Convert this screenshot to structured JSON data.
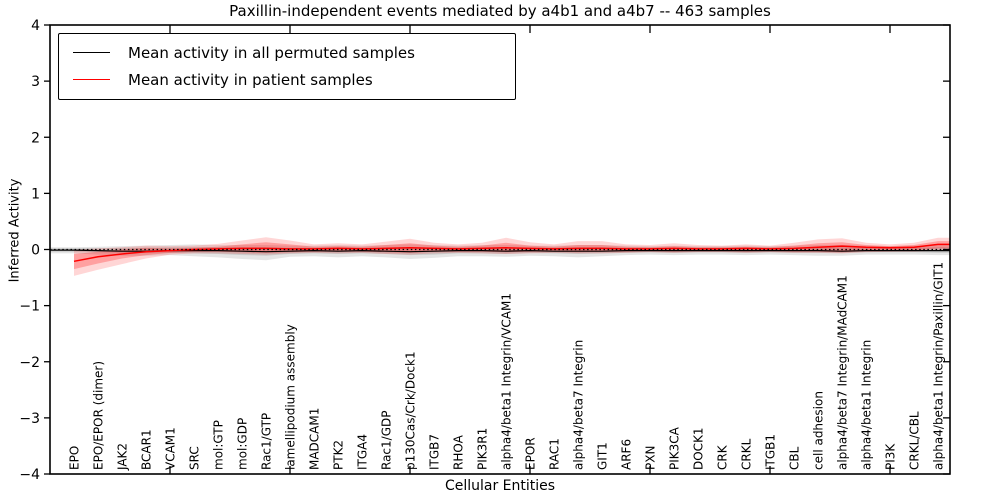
{
  "title": "Paxillin-independent events mediated by a4b1 and a4b7 -- 463 samples",
  "axes": {
    "y_label": "Inferred Activity",
    "x_label": "Cellular Entities",
    "y_tick_labels": [
      "4",
      "3",
      "2",
      "1",
      "0",
      "−1",
      "−2",
      "−3",
      "−4"
    ],
    "y_tick_values": [
      4,
      3,
      2,
      1,
      0,
      -1,
      -2,
      -3,
      -4
    ]
  },
  "legend": {
    "items": [
      {
        "label": "Mean activity in all permuted samples",
        "color": "#000000"
      },
      {
        "label": "Mean activity in patient samples",
        "color": "#ff0000"
      }
    ]
  },
  "colors": {
    "patient_line": "#ff0000",
    "permuted_line": "#000000",
    "patient_band": "rgba(255,0,0,0.16)",
    "patient_band_inner": "rgba(255,0,0,0.25)",
    "permuted_band": "rgba(0,0,0,0.10)",
    "permuted_band_inner": "rgba(0,0,0,0.11)",
    "zero_line": "#000000"
  },
  "chart_data": {
    "type": "line",
    "title": "Paxillin-independent events mediated by a4b1 and a4b7 -- 463 samples",
    "xlabel": "Cellular Entities",
    "ylabel": "Inferred Activity",
    "ylim": [
      -4,
      4
    ],
    "grid": false,
    "legend_position": "upper left",
    "x_tick_indices": [
      4,
      9,
      14,
      19,
      24,
      29,
      34
    ],
    "categories": [
      "EPO",
      "EPO/EPOR (dimer)",
      "JAK2",
      "BCAR1",
      "VCAM1",
      "SRC",
      "mol:GTP",
      "mol:GDP",
      "Rac1/GTP",
      "lamellipodium assembly",
      "MADCAM1",
      "PTK2",
      "ITGA4",
      "Rac1/GDP",
      "p130Cas/Crk/Dock1",
      "ITGB7",
      "RHOA",
      "PIK3R1",
      "alpha4/beta1 Integrin/VCAM1",
      "EPOR",
      "RAC1",
      "alpha4/beta7 Integrin",
      "GIT1",
      "ARF6",
      "PXN",
      "PIK3CA",
      "DOCK1",
      "CRK",
      "CRKL",
      "ITGB1",
      "CBL",
      "cell adhesion",
      "alpha4/beta7 Integrin/MAdCAM1",
      "alpha4/beta1 Integrin",
      "PI3K",
      "CRKL/CBL",
      "alpha4/beta1 Integrin/Paxillin/GIT1"
    ],
    "series": [
      {
        "name": "Mean activity in all permuted samples",
        "group": "permuted",
        "color": "#000000",
        "width": 1.2,
        "values": [
          -0.01,
          -0.02,
          -0.03,
          -0.03,
          -0.02,
          -0.02,
          -0.02,
          -0.03,
          -0.04,
          -0.03,
          -0.02,
          -0.03,
          -0.02,
          -0.03,
          -0.04,
          -0.03,
          -0.02,
          -0.02,
          -0.03,
          -0.02,
          -0.03,
          -0.03,
          -0.03,
          -0.02,
          -0.02,
          -0.02,
          -0.02,
          -0.02,
          -0.02,
          -0.02,
          -0.02,
          -0.02,
          -0.03,
          -0.02,
          -0.02,
          -0.02,
          -0.02
        ]
      },
      {
        "name": "Mean activity in patient samples",
        "group": "patient",
        "color": "#ff0000",
        "width": 1.5,
        "values": [
          -0.21,
          -0.13,
          -0.08,
          -0.04,
          -0.02,
          0.0,
          0.01,
          0.02,
          0.02,
          0.01,
          0.01,
          0.02,
          0.01,
          0.02,
          0.03,
          0.02,
          0.01,
          0.02,
          0.03,
          0.02,
          0.01,
          0.02,
          0.02,
          0.01,
          0.01,
          0.02,
          0.01,
          0.01,
          0.02,
          0.01,
          0.02,
          0.04,
          0.06,
          0.04,
          0.03,
          0.04,
          0.09
        ]
      }
    ],
    "bands": [
      {
        "name": "permuted-outer-band",
        "group": "permuted",
        "color": "rgba(0,0,0,0.10)",
        "upper": [
          0.04,
          0.05,
          0.06,
          0.07,
          0.08,
          0.09,
          0.08,
          0.08,
          0.08,
          0.07,
          0.07,
          0.08,
          0.07,
          0.08,
          0.09,
          0.08,
          0.07,
          0.08,
          0.08,
          0.07,
          0.07,
          0.08,
          0.08,
          0.07,
          0.06,
          0.07,
          0.06,
          0.06,
          0.07,
          0.06,
          0.07,
          0.08,
          0.08,
          0.07,
          0.06,
          0.07,
          0.08
        ],
        "lower": [
          -0.07,
          -0.09,
          -0.11,
          -0.11,
          -0.1,
          -0.12,
          -0.14,
          -0.17,
          -0.19,
          -0.13,
          -0.12,
          -0.14,
          -0.12,
          -0.14,
          -0.17,
          -0.15,
          -0.12,
          -0.12,
          -0.13,
          -0.11,
          -0.12,
          -0.14,
          -0.12,
          -0.1,
          -0.09,
          -0.1,
          -0.09,
          -0.09,
          -0.1,
          -0.09,
          -0.1,
          -0.11,
          -0.11,
          -0.09,
          -0.09,
          -0.09,
          -0.1
        ]
      },
      {
        "name": "permuted-inner-band",
        "group": "permuted",
        "color": "rgba(0,0,0,0.11)",
        "upper": [
          0.02,
          0.02,
          0.03,
          0.03,
          0.04,
          0.04,
          0.04,
          0.04,
          0.04,
          0.03,
          0.03,
          0.04,
          0.03,
          0.04,
          0.04,
          0.04,
          0.03,
          0.04,
          0.04,
          0.03,
          0.03,
          0.04,
          0.04,
          0.03,
          0.03,
          0.03,
          0.03,
          0.03,
          0.03,
          0.03,
          0.03,
          0.04,
          0.04,
          0.03,
          0.03,
          0.03,
          0.04
        ],
        "lower": [
          -0.04,
          -0.05,
          -0.06,
          -0.06,
          -0.06,
          -0.07,
          -0.08,
          -0.1,
          -0.11,
          -0.08,
          -0.07,
          -0.08,
          -0.07,
          -0.08,
          -0.1,
          -0.09,
          -0.07,
          -0.07,
          -0.08,
          -0.06,
          -0.07,
          -0.08,
          -0.07,
          -0.06,
          -0.05,
          -0.06,
          -0.05,
          -0.05,
          -0.06,
          -0.05,
          -0.06,
          -0.06,
          -0.06,
          -0.05,
          -0.05,
          -0.05,
          -0.06
        ]
      },
      {
        "name": "patient-outer-band",
        "group": "patient",
        "color": "rgba(255,0,0,0.16)",
        "upper": [
          0.0,
          0.02,
          0.04,
          0.07,
          0.06,
          0.07,
          0.1,
          0.16,
          0.22,
          0.16,
          0.09,
          0.11,
          0.09,
          0.14,
          0.19,
          0.12,
          0.09,
          0.12,
          0.21,
          0.13,
          0.09,
          0.15,
          0.15,
          0.09,
          0.08,
          0.11,
          0.08,
          0.07,
          0.09,
          0.07,
          0.12,
          0.18,
          0.2,
          0.12,
          0.09,
          0.12,
          0.21
        ],
        "lower": [
          -0.47,
          -0.36,
          -0.26,
          -0.16,
          -0.09,
          -0.07,
          -0.07,
          -0.08,
          -0.09,
          -0.07,
          -0.06,
          -0.07,
          -0.06,
          -0.08,
          -0.09,
          -0.07,
          -0.06,
          -0.07,
          -0.08,
          -0.07,
          -0.06,
          -0.07,
          -0.07,
          -0.06,
          -0.05,
          -0.06,
          -0.05,
          -0.05,
          -0.06,
          -0.05,
          -0.06,
          -0.06,
          -0.07,
          -0.05,
          -0.04,
          -0.04,
          -0.02
        ]
      },
      {
        "name": "patient-inner-band",
        "group": "patient",
        "color": "rgba(255,0,0,0.25)",
        "upper": [
          -0.08,
          -0.04,
          0.0,
          0.03,
          0.02,
          0.03,
          0.05,
          0.09,
          0.13,
          0.09,
          0.05,
          0.06,
          0.05,
          0.08,
          0.11,
          0.07,
          0.05,
          0.07,
          0.12,
          0.07,
          0.05,
          0.08,
          0.08,
          0.05,
          0.04,
          0.06,
          0.04,
          0.04,
          0.05,
          0.04,
          0.07,
          0.11,
          0.13,
          0.08,
          0.06,
          0.08,
          0.15
        ],
        "lower": [
          -0.35,
          -0.25,
          -0.16,
          -0.1,
          -0.06,
          -0.04,
          -0.04,
          -0.05,
          -0.06,
          -0.05,
          -0.04,
          -0.04,
          -0.04,
          -0.05,
          -0.06,
          -0.04,
          -0.04,
          -0.04,
          -0.05,
          -0.04,
          -0.04,
          -0.05,
          -0.04,
          -0.04,
          -0.03,
          -0.04,
          -0.03,
          -0.03,
          -0.04,
          -0.03,
          -0.04,
          -0.04,
          -0.05,
          -0.03,
          -0.03,
          -0.02,
          0.02
        ]
      }
    ],
    "zero_line": {
      "y": 0,
      "style": "dotted",
      "color": "#000000"
    }
  }
}
